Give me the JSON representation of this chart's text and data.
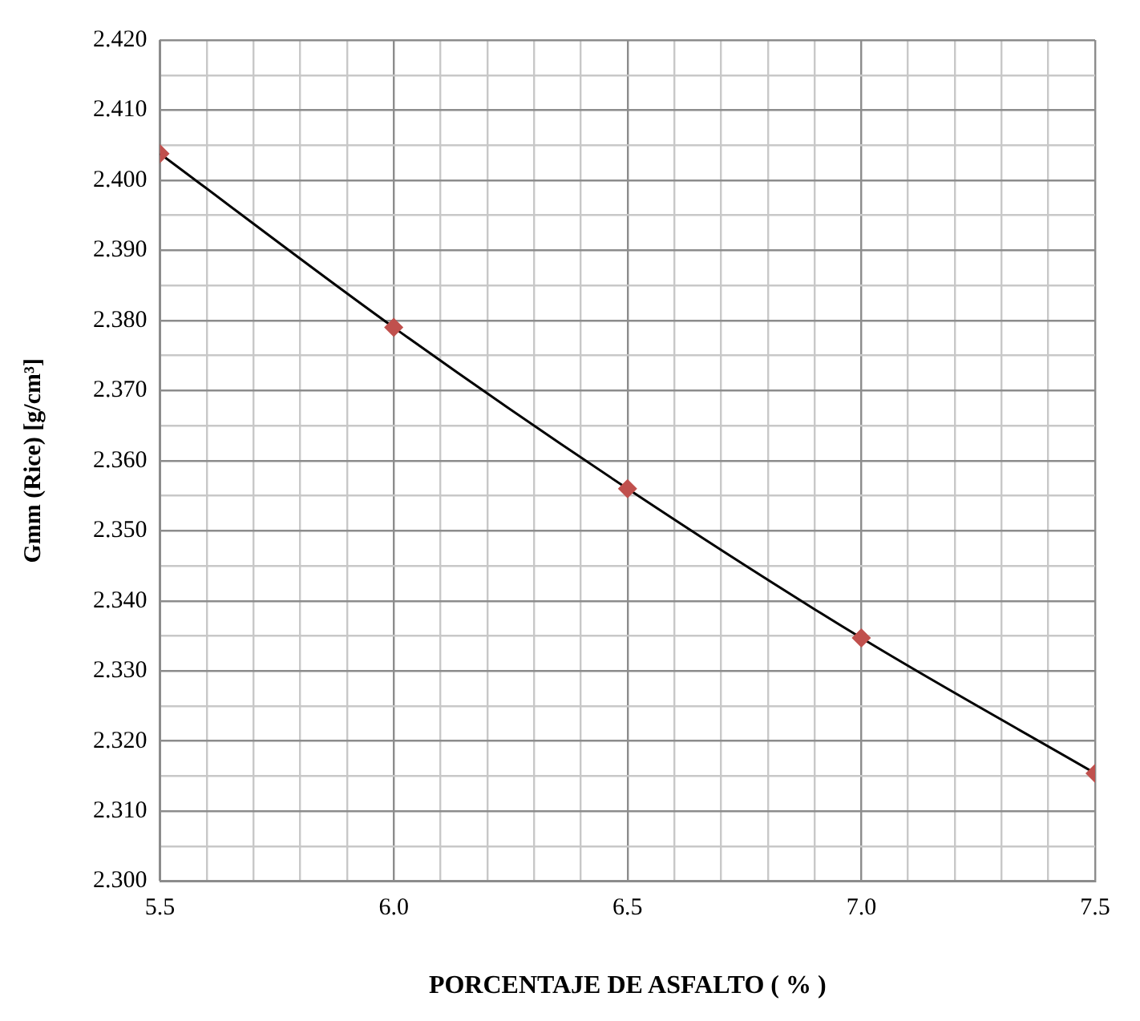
{
  "chart_data": {
    "type": "scatter",
    "xlabel": "PORCENTAJE DE ASFALTO ( % )",
    "ylabel": "Gmm (Rice) [g/cm³]",
    "x": [
      5.5,
      6.0,
      6.5,
      7.0,
      7.5
    ],
    "series": [
      {
        "type": "scatter",
        "color": "#c0504d",
        "marker": "diamond",
        "values": [
          2.4038,
          2.379,
          2.356,
          2.3347,
          2.3154
        ]
      },
      {
        "type": "line",
        "color": "#000000",
        "marker": "none",
        "x": [
          5.5,
          6.0,
          6.5,
          7.0,
          7.5
        ],
        "values": [
          2.4038,
          2.379,
          2.356,
          2.3347,
          2.3154
        ]
      }
    ],
    "xlim": [
      5.5,
      7.5
    ],
    "xticks": [
      {
        "value": 5.5,
        "label": "5.5"
      },
      {
        "value": 5.6,
        "label": null
      },
      {
        "value": 5.7,
        "label": null
      },
      {
        "value": 5.8,
        "label": null
      },
      {
        "value": 5.9,
        "label": null
      },
      {
        "value": 6.0,
        "label": "6.0"
      },
      {
        "value": 6.1,
        "label": null
      },
      {
        "value": 6.2,
        "label": null
      },
      {
        "value": 6.3,
        "label": null
      },
      {
        "value": 6.4,
        "label": null
      },
      {
        "value": 6.5,
        "label": "6.5"
      },
      {
        "value": 6.6,
        "label": null
      },
      {
        "value": 6.7,
        "label": null
      },
      {
        "value": 6.8,
        "label": null
      },
      {
        "value": 6.9,
        "label": null
      },
      {
        "value": 7.0,
        "label": "7.0"
      },
      {
        "value": 7.1,
        "label": null
      },
      {
        "value": 7.2,
        "label": null
      },
      {
        "value": 7.3,
        "label": null
      },
      {
        "value": 7.4,
        "label": null
      },
      {
        "value": 7.5,
        "label": "7.5"
      }
    ],
    "ylim": [
      2.3,
      2.42
    ],
    "yticks": [
      {
        "value": 2.3,
        "label": "2.300"
      },
      {
        "value": 2.305,
        "label": null
      },
      {
        "value": 2.31,
        "label": "2.310"
      },
      {
        "value": 2.315,
        "label": null
      },
      {
        "value": 2.32,
        "label": "2.320"
      },
      {
        "value": 2.325,
        "label": null
      },
      {
        "value": 2.33,
        "label": "2.330"
      },
      {
        "value": 2.335,
        "label": null
      },
      {
        "value": 2.34,
        "label": "2.340"
      },
      {
        "value": 2.345,
        "label": null
      },
      {
        "value": 2.35,
        "label": "2.350"
      },
      {
        "value": 2.355,
        "label": null
      },
      {
        "value": 2.36,
        "label": "2.360"
      },
      {
        "value": 2.365,
        "label": null
      },
      {
        "value": 2.37,
        "label": "2.370"
      },
      {
        "value": 2.375,
        "label": null
      },
      {
        "value": 2.38,
        "label": "2.380"
      },
      {
        "value": 2.385,
        "label": null
      },
      {
        "value": 2.39,
        "label": "2.390"
      },
      {
        "value": 2.395,
        "label": null
      },
      {
        "value": 2.4,
        "label": "2.400"
      },
      {
        "value": 2.405,
        "label": null
      },
      {
        "value": 2.41,
        "label": "2.410"
      },
      {
        "value": 2.415,
        "label": null
      },
      {
        "value": 2.42,
        "label": "2.420"
      }
    ],
    "grid": true,
    "legend": false
  }
}
